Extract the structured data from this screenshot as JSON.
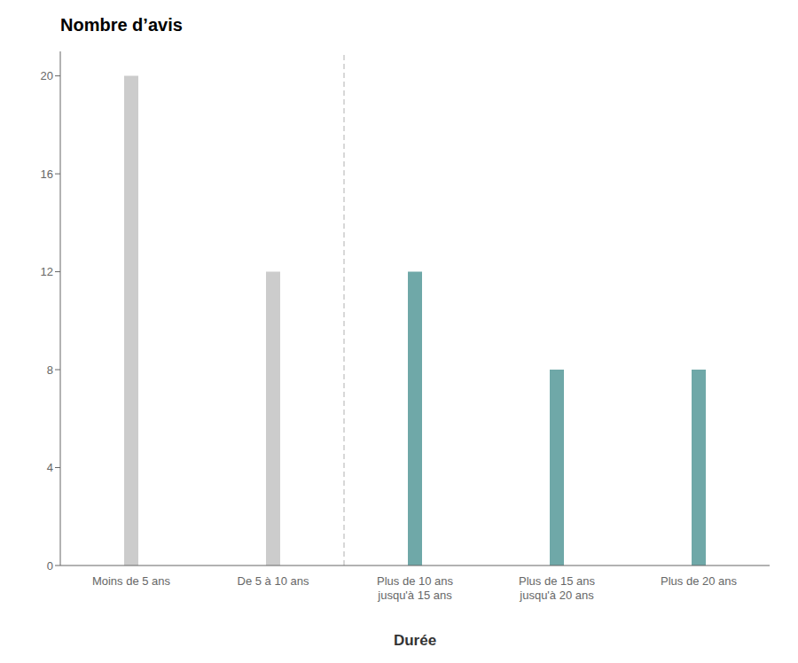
{
  "chart_data": {
    "type": "bar",
    "title": "Nombre d’avis",
    "xlabel": "Durée",
    "categories": [
      "Moins de 5 ans",
      "De 5 à 10 ans",
      "Plus de 10 ans\njusqu'à 15 ans",
      "Plus de 15 ans\njusqu'à 20 ans",
      "Plus de 20 ans"
    ],
    "values": [
      20,
      12,
      12,
      8,
      8
    ],
    "colors": [
      "#cccccc",
      "#cccccc",
      "#6fa8a8",
      "#6fa8a8",
      "#6fa8a8"
    ],
    "ylim": [
      0,
      21
    ],
    "yticks": [
      0,
      4,
      8,
      12,
      16,
      20
    ],
    "grid": false
  }
}
